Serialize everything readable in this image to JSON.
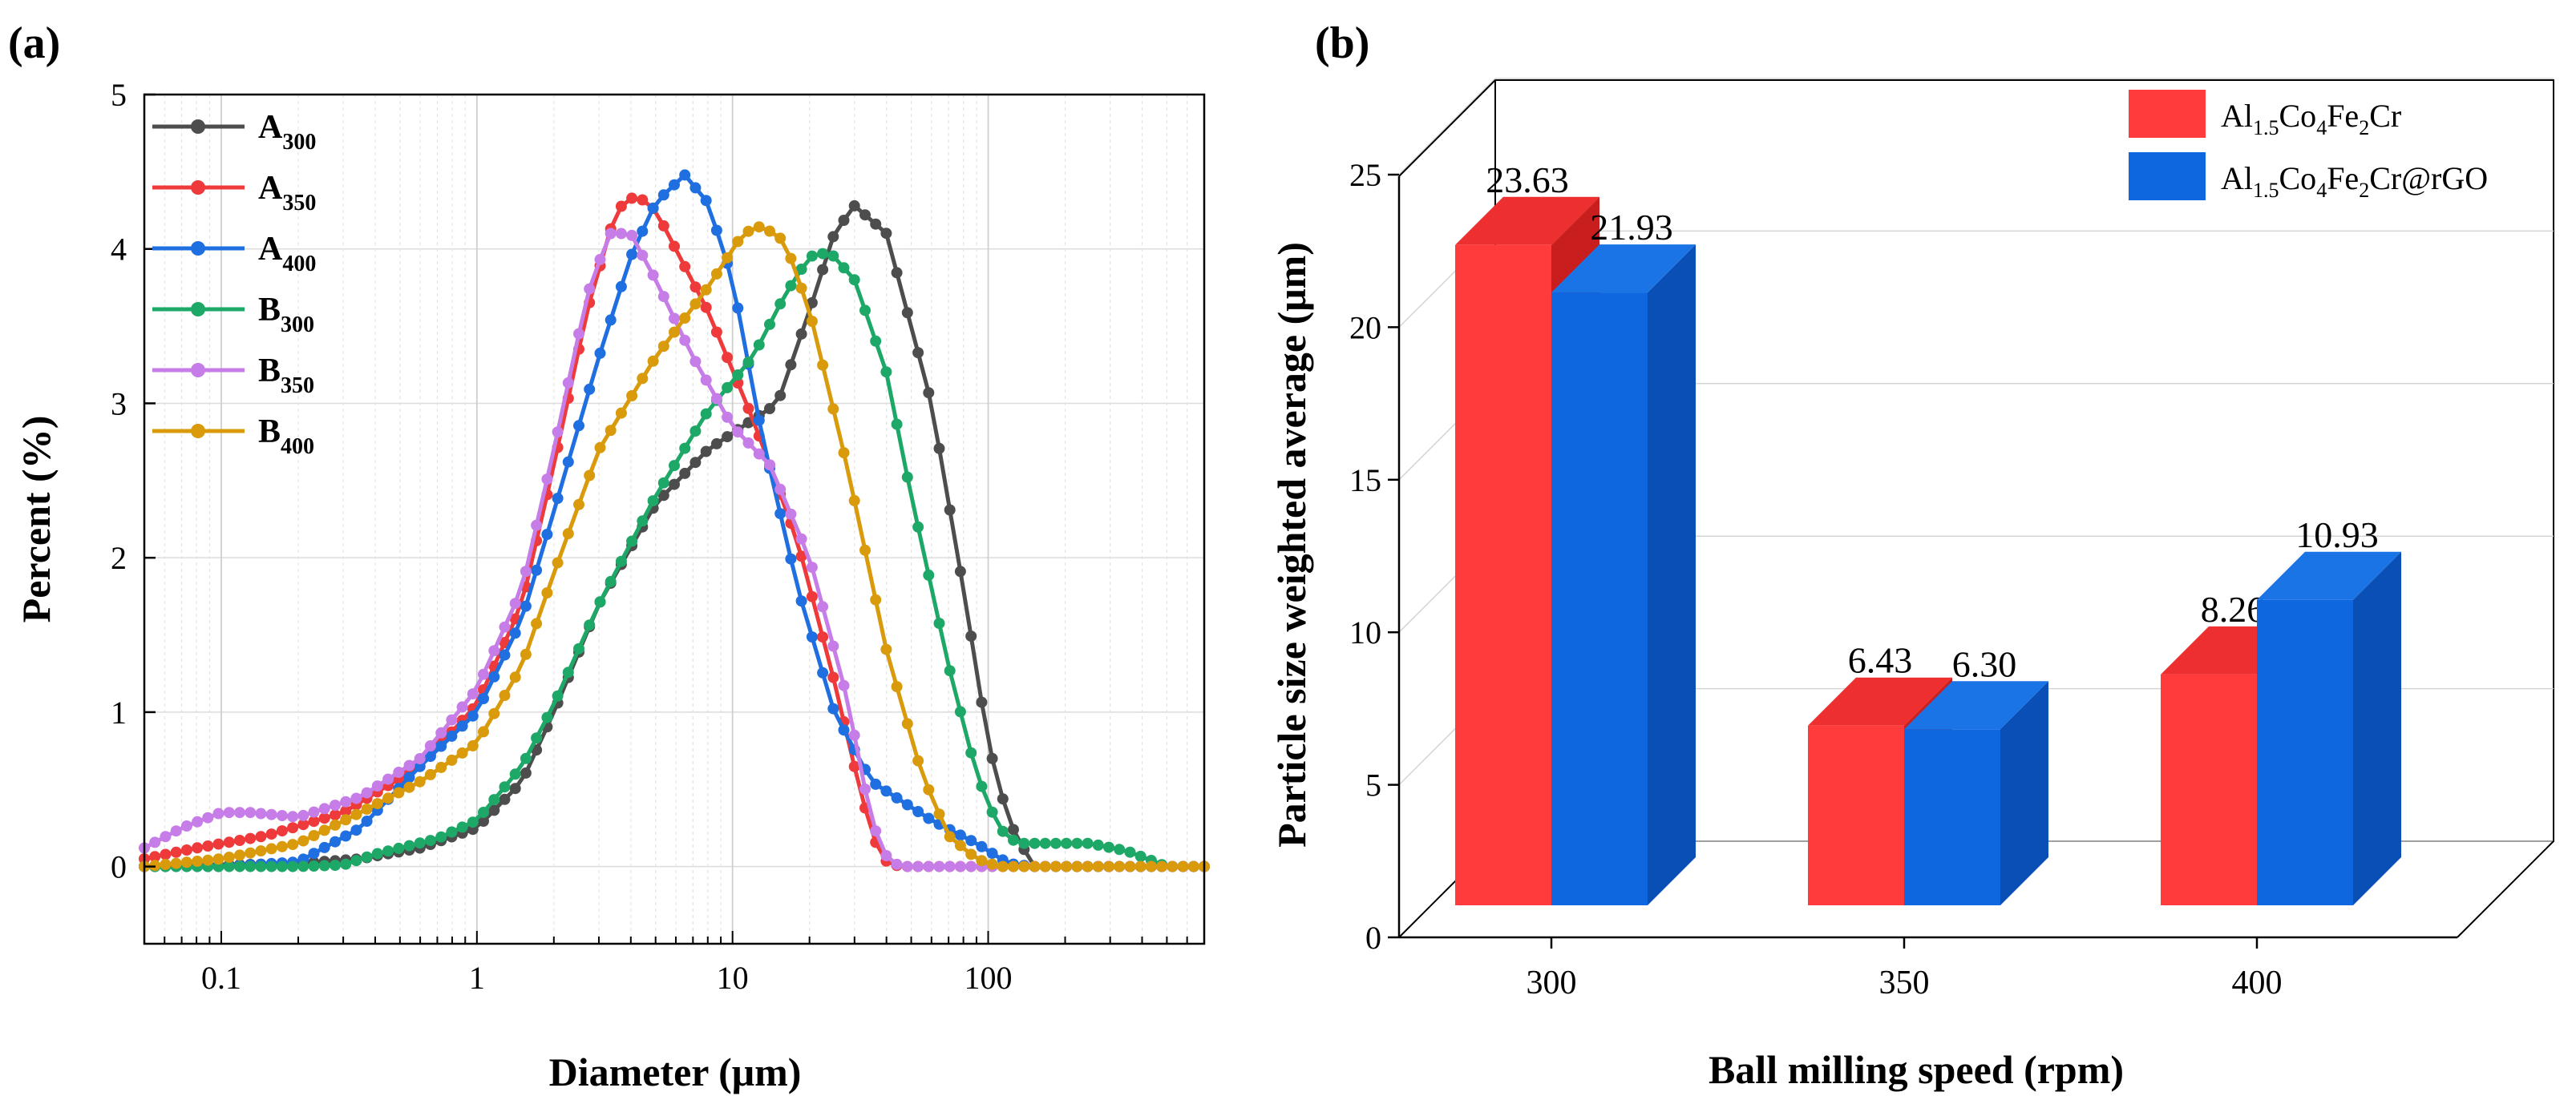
{
  "panel_a": {
    "label": "(a)",
    "colors": {
      "A300": "#4d4d4d",
      "A350": "#ee3a3a",
      "A400": "#1f6fe0",
      "B300": "#1ea868",
      "B350": "#c77de8",
      "B400": "#d99a0c"
    },
    "chart_data": {
      "type": "line",
      "xscale": "log",
      "xlabel": "Diameter (μm)",
      "ylabel": "Percent (%)",
      "xlim": [
        0.05,
        700
      ],
      "ylim": [
        -0.5,
        5
      ],
      "yticks": [
        "0",
        "1",
        "2",
        "3",
        "4",
        "5"
      ],
      "xticks": [
        "0.1",
        "1",
        "10",
        "100"
      ],
      "series": [
        {
          "key": "A300",
          "name": "A",
          "sub": "300",
          "points": [
            [
              0.05,
              0
            ],
            [
              0.1,
              0.01
            ],
            [
              0.2,
              0.02
            ],
            [
              0.35,
              0.05
            ],
            [
              0.6,
              0.12
            ],
            [
              1,
              0.25
            ],
            [
              1.5,
              0.55
            ],
            [
              2,
              1.0
            ],
            [
              3,
              1.7
            ],
            [
              5,
              2.35
            ],
            [
              8,
              2.7
            ],
            [
              15,
              3.0
            ],
            [
              20,
              3.6
            ],
            [
              25,
              4.1
            ],
            [
              30,
              4.28
            ],
            [
              40,
              4.1
            ],
            [
              60,
              3.0
            ],
            [
              80,
              1.8
            ],
            [
              100,
              0.8
            ],
            [
              120,
              0.3
            ],
            [
              150,
              0
            ],
            [
              700,
              0
            ]
          ]
        },
        {
          "key": "A350",
          "name": "A",
          "sub": "350",
          "points": [
            [
              0.05,
              0.05
            ],
            [
              0.08,
              0.12
            ],
            [
              0.15,
              0.2
            ],
            [
              0.3,
              0.35
            ],
            [
              0.6,
              0.65
            ],
            [
              1,
              1.05
            ],
            [
              1.5,
              1.7
            ],
            [
              2,
              2.6
            ],
            [
              2.7,
              3.6
            ],
            [
              3.5,
              4.25
            ],
            [
              4.2,
              4.35
            ],
            [
              5,
              4.25
            ],
            [
              8,
              3.6
            ],
            [
              12,
              2.9
            ],
            [
              18,
              2.1
            ],
            [
              25,
              1.2
            ],
            [
              32,
              0.45
            ],
            [
              38,
              0.05
            ],
            [
              45,
              0
            ],
            [
              700,
              0
            ]
          ]
        },
        {
          "key": "A400",
          "name": "A",
          "sub": "400",
          "points": [
            [
              0.05,
              0
            ],
            [
              0.1,
              0
            ],
            [
              0.2,
              0.03
            ],
            [
              0.35,
              0.25
            ],
            [
              0.6,
              0.65
            ],
            [
              1,
              1.0
            ],
            [
              1.5,
              1.6
            ],
            [
              2,
              2.3
            ],
            [
              3,
              3.3
            ],
            [
              4,
              3.95
            ],
            [
              5,
              4.3
            ],
            [
              6.5,
              4.48
            ],
            [
              8,
              4.3
            ],
            [
              10,
              3.8
            ],
            [
              13,
              2.8
            ],
            [
              18,
              1.8
            ],
            [
              25,
              1.0
            ],
            [
              35,
              0.55
            ],
            [
              60,
              0.3
            ],
            [
              90,
              0.15
            ],
            [
              120,
              0.02
            ],
            [
              150,
              0
            ],
            [
              700,
              0
            ]
          ]
        },
        {
          "key": "B300",
          "name": "B",
          "sub": "300",
          "points": [
            [
              0.05,
              0
            ],
            [
              0.2,
              0
            ],
            [
              0.3,
              0.01
            ],
            [
              0.4,
              0.08
            ],
            [
              0.7,
              0.18
            ],
            [
              1,
              0.3
            ],
            [
              1.5,
              0.65
            ],
            [
              2,
              1.05
            ],
            [
              3,
              1.7
            ],
            [
              5,
              2.4
            ],
            [
              8,
              2.95
            ],
            [
              12,
              3.3
            ],
            [
              16,
              3.7
            ],
            [
              20,
              3.95
            ],
            [
              24,
              3.98
            ],
            [
              30,
              3.8
            ],
            [
              40,
              3.2
            ],
            [
              50,
              2.4
            ],
            [
              70,
              1.3
            ],
            [
              90,
              0.6
            ],
            [
              110,
              0.25
            ],
            [
              130,
              0.15
            ],
            [
              250,
              0.15
            ],
            [
              350,
              0.1
            ],
            [
              500,
              0
            ],
            [
              700,
              0
            ]
          ]
        },
        {
          "key": "B350",
          "name": "B",
          "sub": "350",
          "points": [
            [
              0.05,
              0.12
            ],
            [
              0.07,
              0.25
            ],
            [
              0.1,
              0.35
            ],
            [
              0.13,
              0.35
            ],
            [
              0.2,
              0.32
            ],
            [
              0.35,
              0.45
            ],
            [
              0.6,
              0.7
            ],
            [
              1,
              1.15
            ],
            [
              1.5,
              1.8
            ],
            [
              2,
              2.7
            ],
            [
              2.7,
              3.7
            ],
            [
              3.3,
              4.1
            ],
            [
              4,
              4.1
            ],
            [
              5,
              3.8
            ],
            [
              7,
              3.3
            ],
            [
              10,
              2.85
            ],
            [
              14,
              2.6
            ],
            [
              20,
              2.0
            ],
            [
              28,
              1.1
            ],
            [
              33,
              0.5
            ],
            [
              38,
              0.1
            ],
            [
              45,
              0
            ],
            [
              700,
              0
            ]
          ]
        },
        {
          "key": "B400",
          "name": "B",
          "sub": "400",
          "points": [
            [
              0.05,
              0
            ],
            [
              0.1,
              0.05
            ],
            [
              0.2,
              0.15
            ],
            [
              0.35,
              0.35
            ],
            [
              0.6,
              0.55
            ],
            [
              1,
              0.8
            ],
            [
              1.5,
              1.3
            ],
            [
              2,
              1.9
            ],
            [
              3,
              2.7
            ],
            [
              5,
              3.3
            ],
            [
              8,
              3.75
            ],
            [
              11,
              4.1
            ],
            [
              13,
              4.15
            ],
            [
              16,
              4.05
            ],
            [
              20,
              3.6
            ],
            [
              28,
              2.6
            ],
            [
              40,
              1.4
            ],
            [
              55,
              0.6
            ],
            [
              70,
              0.2
            ],
            [
              90,
              0.05
            ],
            [
              110,
              0
            ],
            [
              700,
              0
            ]
          ]
        }
      ]
    }
  },
  "panel_b": {
    "label": "(b)",
    "colors": {
      "red_front": "#ff3b3b",
      "red_top": "#ee2f2f",
      "red_side": "#c81e1e",
      "blue_front": "#0f67df",
      "blue_top": "#1b74e6",
      "blue_side": "#0a4fb5"
    },
    "chart_data": {
      "type": "bar",
      "xlabel": "Ball milling speed (rpm)",
      "ylabel": "Particle size weighted average (μm)",
      "categories": [
        "300",
        "350",
        "400"
      ],
      "ylim": [
        0,
        25
      ],
      "yticks": [
        "0",
        "5",
        "10",
        "15",
        "20",
        "25"
      ],
      "series": [
        {
          "name_main": "Al",
          "name_sub1": "1.5",
          "name_mid": "Co",
          "name_sub2": "4",
          "name_mid2": "Fe",
          "name_sub3": "2",
          "name_tail": "Cr",
          "values": [
            23.63,
            6.43,
            8.26
          ],
          "labels": [
            "23.63",
            "6.43",
            "8.26"
          ]
        },
        {
          "name_main": "Al",
          "name_sub1": "1.5",
          "name_mid": "Co",
          "name_sub2": "4",
          "name_mid2": "Fe",
          "name_sub3": "2",
          "name_tail": "Cr@rGO",
          "values": [
            21.93,
            6.3,
            10.93
          ],
          "labels": [
            "21.93",
            "6.30",
            "10.93"
          ]
        }
      ]
    }
  }
}
